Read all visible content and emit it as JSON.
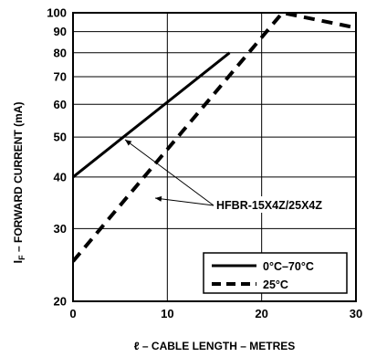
{
  "chart_data": {
    "type": "line",
    "xlabel": "ℓ – CABLE LENGTH – METRES",
    "ylabel_main": "I",
    "ylabel_sub": "F",
    "ylabel_rest": " – FORWARD CURRENT (mA)",
    "x_scale": "linear",
    "y_scale": "log",
    "xlim": [
      0,
      30
    ],
    "ylim": [
      20,
      100
    ],
    "x_ticks": [
      0,
      10,
      20,
      30
    ],
    "x_tick_labels": [
      "0",
      "10",
      "20",
      "30"
    ],
    "y_ticks": [
      20,
      30,
      40,
      50,
      60,
      70,
      80,
      90,
      100
    ],
    "y_tick_labels": [
      "20",
      "30",
      "40",
      "50",
      "60",
      "70",
      "80",
      "90",
      "100"
    ],
    "grid": true,
    "series": [
      {
        "name": "0°C–70°C",
        "style": "solid",
        "x": [
          0,
          16.6
        ],
        "y": [
          40,
          80
        ]
      },
      {
        "name": "25°C",
        "style": "dashed",
        "x": [
          0,
          22.2,
          30
        ],
        "y": [
          25,
          100,
          92
        ]
      }
    ],
    "annotation": {
      "text": "HFBR-15X4Z/25X4Z"
    },
    "legend": {
      "position": "bottom-right"
    }
  }
}
